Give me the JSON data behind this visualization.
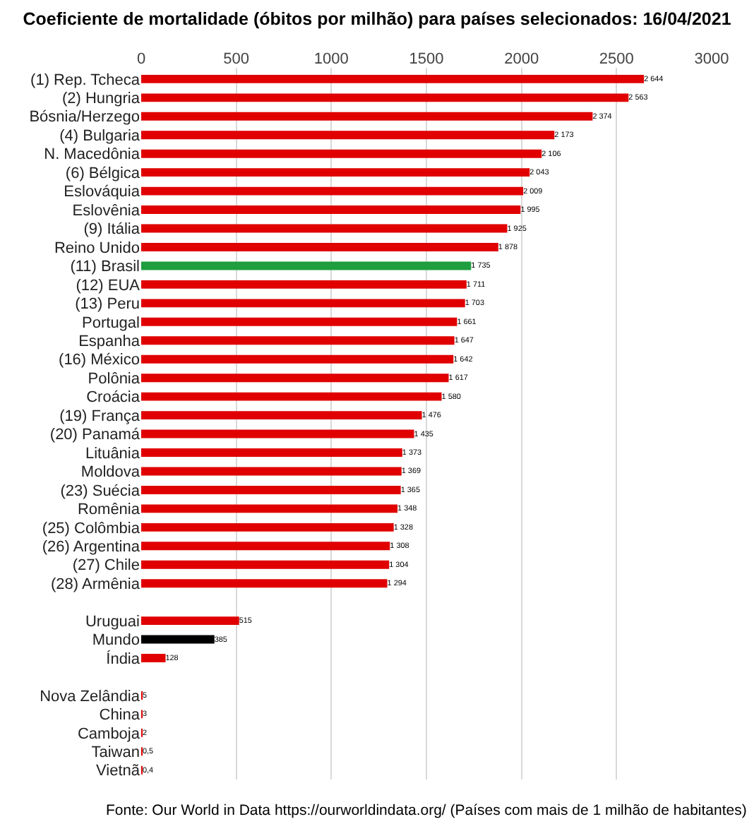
{
  "chart_data": {
    "type": "bar",
    "orientation": "horizontal",
    "title": "Coeficiente de mortalidade (óbitos por milhão) para países selecionados: 16/04/2021",
    "categories": [
      "(1) Rep. Tcheca",
      "(2) Hungria",
      "Bósnia/Herzego",
      "(4) Bulgaria",
      "N. Macedônia",
      "(6) Bélgica",
      "Eslováquia",
      "Eslovênia",
      "(9) Itália",
      "Reino Unido",
      "(11) Brasil",
      "(12) EUA",
      "(13) Peru",
      "Portugal",
      "Espanha",
      "(16) México",
      "Polônia",
      "Croácia",
      "(19) França",
      "(20) Panamá",
      "Lituânia",
      "Moldova",
      "(23) Suécia",
      "Romênia",
      "(25) Colômbia",
      "(26) Argentina",
      "(27) Chile",
      "(28) Armênia",
      null,
      "Uruguai",
      "Mundo",
      "Índia",
      null,
      "Nova Zelândia",
      "China",
      "Camboja",
      "Taiwan",
      "Vietnã"
    ],
    "values": [
      2644,
      2563,
      2374,
      2173,
      2106,
      2043,
      2009,
      1995,
      1925,
      1878,
      1735,
      1711,
      1703,
      1661,
      1647,
      1642,
      1617,
      1580,
      1476,
      1435,
      1373,
      1369,
      1365,
      1348,
      1328,
      1308,
      1304,
      1294,
      null,
      515,
      385,
      128,
      null,
      5,
      3,
      2,
      0.5,
      0.4
    ],
    "value_labels": [
      "2 644",
      "2 563",
      "2 374",
      "2 173",
      "2 106",
      "2 043",
      "2 009",
      "1 995",
      "1 925",
      "1 878",
      "1 735",
      "1 711",
      "1 703",
      "1 661",
      "1 647",
      "1 642",
      "1 617",
      "1 580",
      "1 476",
      "1 435",
      "1 373",
      "1 369",
      "1 365",
      "1 348",
      "1 328",
      "1 308",
      "1 304",
      "1 294",
      null,
      "515",
      "385",
      "128",
      null,
      "5",
      "3",
      "2",
      "0,5",
      "0,4"
    ],
    "colors": [
      "#e00000",
      "#e00000",
      "#e00000",
      "#e00000",
      "#e00000",
      "#e00000",
      "#e00000",
      "#e00000",
      "#e00000",
      "#e00000",
      "#1e9e3e",
      "#e00000",
      "#e00000",
      "#e00000",
      "#e00000",
      "#e00000",
      "#e00000",
      "#e00000",
      "#e00000",
      "#e00000",
      "#e00000",
      "#e00000",
      "#e00000",
      "#e00000",
      "#e00000",
      "#e00000",
      "#e00000",
      "#e00000",
      null,
      "#e00000",
      "#000000",
      "#e00000",
      null,
      "#e00000",
      "#e00000",
      "#e00000",
      "#e00000",
      "#e00000"
    ],
    "xlim": [
      0,
      3000
    ],
    "xticks": [
      0,
      500,
      1000,
      1500,
      2000,
      2500,
      3000
    ],
    "grid": "x",
    "legend": false,
    "annotations": [
      "Fonte: Our World in Data https://ourworldindata.org/ (Países com mais de 1 milhão de habitantes)"
    ]
  }
}
